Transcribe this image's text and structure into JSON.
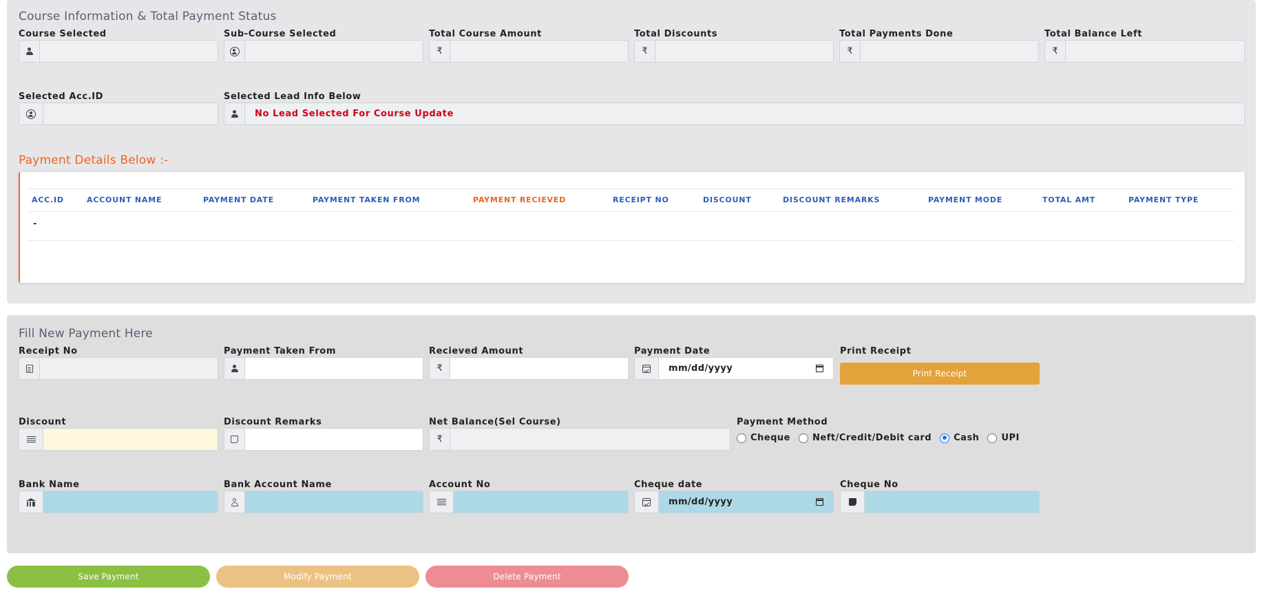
{
  "course_info": {
    "title": "Course Information & Total Payment Status",
    "fields": {
      "course_selected": {
        "label": "Course Selected",
        "value": ""
      },
      "sub_course_selected": {
        "label": "Sub-Course Selected",
        "value": ""
      },
      "total_course_amount": {
        "label": "Total Course Amount",
        "value": ""
      },
      "total_discounts": {
        "label": "Total Discounts",
        "value": ""
      },
      "total_payments_done": {
        "label": "Total Payments Done",
        "value": ""
      },
      "total_balance_left": {
        "label": "Total Balance Left",
        "value": ""
      },
      "selected_acc_id": {
        "label": "Selected Acc.ID",
        "value": ""
      },
      "selected_lead_info": {
        "label": "Selected Lead Info Below",
        "value": "No Lead Selected For Course Update"
      }
    },
    "currency_symbol": "₹"
  },
  "payment_details": {
    "title": "Payment Details Below :-",
    "columns": [
      "ACC.ID",
      "ACCOUNT NAME",
      "PAYMENT DATE",
      "PAYMENT TAKEN FROM",
      "PAYMENT RECIEVED",
      "RECEIPT NO",
      "DISCOUNT",
      "DISCOUNT REMARKS",
      "PAYMENT MODE",
      "TOTAL AMT",
      "PAYMENT TYPE"
    ],
    "rows": [
      [
        "-"
      ]
    ]
  },
  "new_payment": {
    "title": "Fill New Payment Here",
    "receipt_no": {
      "label": "Receipt No",
      "value": ""
    },
    "payment_taken_from": {
      "label": "Payment Taken From",
      "value": ""
    },
    "recieved_amount": {
      "label": "Recieved Amount",
      "value": ""
    },
    "payment_date": {
      "label": "Payment Date",
      "value": "mm/dd/yyyy"
    },
    "print_receipt": {
      "label": "Print Receipt",
      "button": "Print Receipt"
    },
    "discount": {
      "label": "Discount",
      "value": ""
    },
    "discount_remarks": {
      "label": "Discount Remarks",
      "value": ""
    },
    "net_balance": {
      "label": "Net Balance(Sel Course)",
      "value": ""
    },
    "payment_method": {
      "label": "Payment Method",
      "options": [
        "Cheque",
        "Neft/Credit/Debit card",
        "Cash",
        "UPI"
      ],
      "selected": "Cash"
    },
    "bank_name": {
      "label": "Bank Name",
      "value": ""
    },
    "bank_account_name": {
      "label": "Bank Account Name",
      "value": ""
    },
    "account_no": {
      "label": "Account No",
      "value": ""
    },
    "cheque_date": {
      "label": "Cheque date",
      "value": "mm/dd/yyyy"
    },
    "cheque_no": {
      "label": "Cheque No",
      "value": ""
    }
  },
  "actions": {
    "save": "Save Payment",
    "modify": "Modify Payment",
    "delete": "Delete Payment"
  },
  "colors": {
    "accent_orange": "#f0651f",
    "header_blue": "#2e5cb8",
    "save_green": "#8bc044",
    "modify_tan": "#ecc284",
    "delete_pink": "#ee8c94",
    "print_orange": "#e4a23a",
    "bank_field_blue": "#add8e6",
    "discount_yellow": "#fff8dc",
    "radio_selected": "#1a73e8"
  }
}
